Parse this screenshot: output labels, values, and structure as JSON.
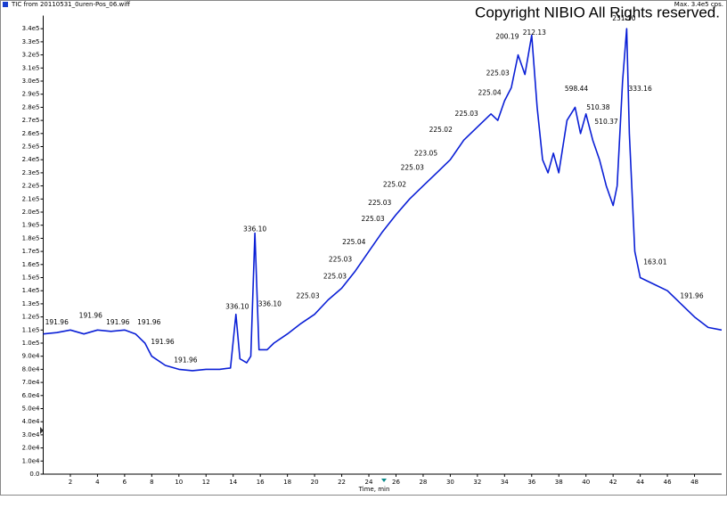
{
  "chart_data": {
    "type": "line",
    "header": "TIC from 20110531_0uren-Pos_06.wiff",
    "max_label": "Max. 3.4e5 cps.",
    "copyright": "Copyright NIBIO All Rights reserved.",
    "xlabel": "Time, min",
    "color": "#0a1fd6",
    "xlim": [
      0,
      50
    ],
    "ylim": [
      0,
      350000
    ],
    "xticks": [
      2,
      4,
      6,
      8,
      10,
      12,
      14,
      16,
      18,
      20,
      22,
      24,
      26,
      28,
      30,
      32,
      34,
      36,
      38,
      40,
      42,
      44,
      46,
      48
    ],
    "yticks": [
      {
        "value": 0,
        "label": "0.0"
      },
      {
        "value": 10000,
        "label": "1.0e4"
      },
      {
        "value": 20000,
        "label": "2.0e4"
      },
      {
        "value": 30000,
        "label": "3.0e4"
      },
      {
        "value": 40000,
        "label": "4.0e4"
      },
      {
        "value": 50000,
        "label": "5.0e4"
      },
      {
        "value": 60000,
        "label": "6.0e4"
      },
      {
        "value": 70000,
        "label": "7.0e4"
      },
      {
        "value": 80000,
        "label": "8.0e4"
      },
      {
        "value": 90000,
        "label": "9.0e4"
      },
      {
        "value": 100000,
        "label": "1.0e5"
      },
      {
        "value": 110000,
        "label": "1.1e5"
      },
      {
        "value": 120000,
        "label": "1.2e5"
      },
      {
        "value": 130000,
        "label": "1.3e5"
      },
      {
        "value": 140000,
        "label": "1.4e5"
      },
      {
        "value": 150000,
        "label": "1.5e5"
      },
      {
        "value": 160000,
        "label": "1.6e5"
      },
      {
        "value": 170000,
        "label": "1.7e5"
      },
      {
        "value": 180000,
        "label": "1.8e5"
      },
      {
        "value": 190000,
        "label": "1.9e5"
      },
      {
        "value": 200000,
        "label": "2.0e5"
      },
      {
        "value": 210000,
        "label": "2.1e5"
      },
      {
        "value": 220000,
        "label": "2.2e5"
      },
      {
        "value": 230000,
        "label": "2.3e5"
      },
      {
        "value": 240000,
        "label": "2.4e5"
      },
      {
        "value": 250000,
        "label": "2.5e5"
      },
      {
        "value": 260000,
        "label": "2.6e5"
      },
      {
        "value": 270000,
        "label": "2.7e5"
      },
      {
        "value": 280000,
        "label": "2.8e5"
      },
      {
        "value": 290000,
        "label": "2.9e5"
      },
      {
        "value": 300000,
        "label": "3.0e5"
      },
      {
        "value": 310000,
        "label": "3.1e5"
      },
      {
        "value": 320000,
        "label": "3.2e5"
      },
      {
        "value": 330000,
        "label": "3.3e5"
      },
      {
        "value": 340000,
        "label": "3.4e5"
      }
    ],
    "x": [
      0,
      1,
      2,
      3,
      4,
      5,
      6,
      6.8,
      7.5,
      8,
      9,
      10,
      11,
      12,
      13,
      13.8,
      14.2,
      14.5,
      15,
      15.3,
      15.6,
      15.9,
      16.5,
      17,
      18,
      19,
      20,
      21,
      22,
      23,
      24,
      25,
      26,
      27,
      28,
      29,
      30,
      31,
      32,
      33,
      33.5,
      34,
      34.5,
      35,
      35.5,
      36,
      36.4,
      36.8,
      37.2,
      37.6,
      38,
      38.6,
      39.2,
      39.6,
      40,
      40.5,
      41,
      41.5,
      42,
      42.3,
      42.7,
      43,
      43.2,
      43.6,
      44,
      45,
      46,
      47,
      48,
      49,
      50
    ],
    "values": [
      107000,
      108000,
      110000,
      107000,
      110000,
      109000,
      110000,
      107000,
      100000,
      90000,
      83000,
      80000,
      79000,
      80000,
      80000,
      81000,
      122000,
      88000,
      85000,
      90000,
      184000,
      95000,
      95000,
      100000,
      107000,
      115000,
      122000,
      133000,
      142000,
      155000,
      170000,
      185000,
      198000,
      210000,
      220000,
      230000,
      240000,
      255000,
      265000,
      275000,
      270000,
      285000,
      295000,
      320000,
      305000,
      335000,
      280000,
      240000,
      230000,
      245000,
      230000,
      270000,
      280000,
      260000,
      275000,
      255000,
      240000,
      220000,
      205000,
      220000,
      300000,
      340000,
      260000,
      170000,
      150000,
      145000,
      140000,
      130000,
      120000,
      112000,
      110000
    ],
    "annotations": [
      {
        "x": 1,
        "y": 113000,
        "text": "191.96"
      },
      {
        "x": 3.5,
        "y": 118000,
        "text": "191.96"
      },
      {
        "x": 5.5,
        "y": 113000,
        "text": "191.96"
      },
      {
        "x": 7.8,
        "y": 113000,
        "text": "191.96"
      },
      {
        "x": 8.8,
        "y": 98000,
        "text": "191.96"
      },
      {
        "x": 10.5,
        "y": 84000,
        "text": "191.96"
      },
      {
        "x": 14.3,
        "y": 125000,
        "text": "336.10"
      },
      {
        "x": 15.6,
        "y": 184000,
        "text": "336.10"
      },
      {
        "x": 16.7,
        "y": 127000,
        "text": "336.10"
      },
      {
        "x": 19.5,
        "y": 133000,
        "text": "225.03"
      },
      {
        "x": 21.5,
        "y": 148000,
        "text": "225.03"
      },
      {
        "x": 21.9,
        "y": 161000,
        "text": "225.03"
      },
      {
        "x": 22.9,
        "y": 174000,
        "text": "225.04"
      },
      {
        "x": 24.3,
        "y": 192000,
        "text": "225.03"
      },
      {
        "x": 24.8,
        "y": 204000,
        "text": "225.03"
      },
      {
        "x": 25.9,
        "y": 218000,
        "text": "225.02"
      },
      {
        "x": 27.2,
        "y": 231000,
        "text": "225.03"
      },
      {
        "x": 28.2,
        "y": 242000,
        "text": "223.05"
      },
      {
        "x": 29.3,
        "y": 260000,
        "text": "225.02"
      },
      {
        "x": 31.2,
        "y": 272000,
        "text": "225.03"
      },
      {
        "x": 32.9,
        "y": 288000,
        "text": "225.04"
      },
      {
        "x": 33.5,
        "y": 303000,
        "text": "225.03"
      },
      {
        "x": 34.2,
        "y": 331000,
        "text": "200.19"
      },
      {
        "x": 36.2,
        "y": 334000,
        "text": "212.13"
      },
      {
        "x": 39.3,
        "y": 291000,
        "text": "598.44"
      },
      {
        "x": 40.9,
        "y": 277000,
        "text": "510.38"
      },
      {
        "x": 41.5,
        "y": 266000,
        "text": "510.37"
      },
      {
        "x": 42.8,
        "y": 345000,
        "text": "231.10"
      },
      {
        "x": 44.0,
        "y": 291000,
        "text": "333.16"
      },
      {
        "x": 45.1,
        "y": 159000,
        "text": "163.01"
      },
      {
        "x": 47.8,
        "y": 133000,
        "text": "191.96"
      }
    ]
  }
}
